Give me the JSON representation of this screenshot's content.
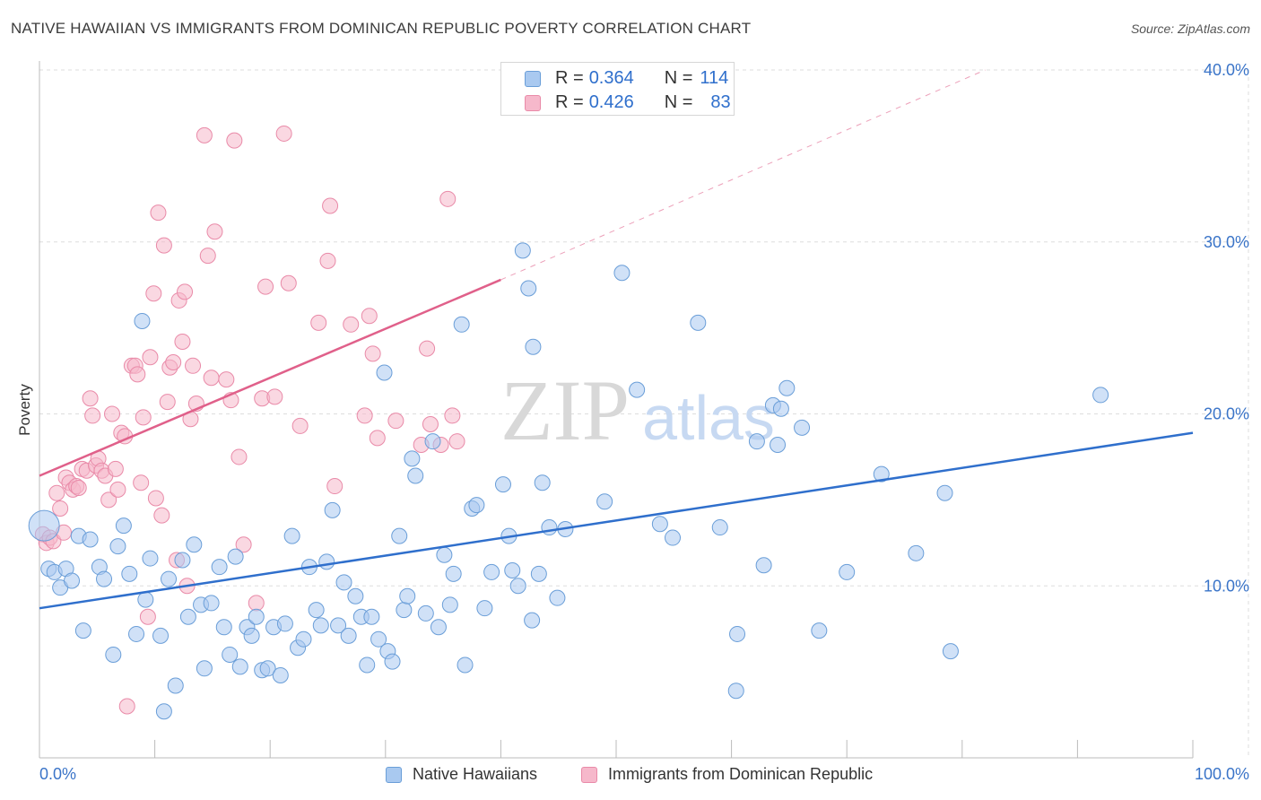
{
  "title": "NATIVE HAWAIIAN VS IMMIGRANTS FROM DOMINICAN REPUBLIC POVERTY CORRELATION CHART",
  "source": "Source: ZipAtlas.com",
  "watermark": {
    "zip": "ZIP",
    "atlas": "atlas"
  },
  "colors": {
    "blue_fill": "#a9c9f0",
    "blue_stroke": "#6a9ed8",
    "blue_line": "#2f6fcc",
    "pink_fill": "#f6b8cb",
    "pink_stroke": "#e98aa8",
    "pink_line": "#e0608a",
    "axis_text": "#3a74c8",
    "grid": "#dddddd"
  },
  "stats": {
    "r_label": "R =",
    "n_label": "N =",
    "blue": {
      "r": "0.364",
      "n": "114"
    },
    "pink": {
      "r": "0.426",
      "n": "83"
    }
  },
  "chart_data": {
    "type": "scatter",
    "title": "NATIVE HAWAIIAN VS IMMIGRANTS FROM DOMINICAN REPUBLIC POVERTY CORRELATION CHART",
    "xlabel": "",
    "ylabel": "Poverty",
    "xlim": [
      0,
      100
    ],
    "ylim": [
      0,
      40
    ],
    "x_tick_labels": [
      "0.0%",
      "100.0%"
    ],
    "y_ticks": [
      10,
      20,
      30,
      40
    ],
    "y_tick_labels": [
      "10.0%",
      "20.0%",
      "30.0%",
      "40.0%"
    ],
    "grid": true,
    "legend_position": "bottom",
    "series": [
      {
        "name": "Native Hawaiians",
        "color": "#a9c9f0",
        "trend": {
          "x": [
            0,
            100
          ],
          "y": [
            8.7,
            18.9
          ],
          "dashed_extension": false
        },
        "points": [
          [
            0.4,
            13.5
          ],
          [
            0.8,
            11
          ],
          [
            1.3,
            10.8
          ],
          [
            1.8,
            9.9
          ],
          [
            2.3,
            11
          ],
          [
            2.8,
            10.3
          ],
          [
            3.4,
            12.9
          ],
          [
            3.8,
            7.4
          ],
          [
            4.4,
            12.7
          ],
          [
            5.2,
            11.1
          ],
          [
            5.6,
            10.4
          ],
          [
            6.4,
            6
          ],
          [
            6.8,
            12.3
          ],
          [
            7.3,
            13.5
          ],
          [
            7.8,
            10.7
          ],
          [
            8.4,
            7.2
          ],
          [
            8.9,
            25.4
          ],
          [
            9.2,
            9.2
          ],
          [
            9.6,
            11.6
          ],
          [
            10.5,
            7.1
          ],
          [
            10.8,
            2.7
          ],
          [
            11.2,
            10.4
          ],
          [
            11.8,
            4.2
          ],
          [
            12.4,
            11.5
          ],
          [
            12.9,
            8.2
          ],
          [
            13.4,
            12.4
          ],
          [
            14.0,
            8.9
          ],
          [
            14.3,
            5.2
          ],
          [
            14.9,
            9
          ],
          [
            15.6,
            11.1
          ],
          [
            16.0,
            7.6
          ],
          [
            16.5,
            6
          ],
          [
            17.0,
            11.7
          ],
          [
            17.4,
            5.3
          ],
          [
            18.0,
            7.6
          ],
          [
            18.4,
            7.1
          ],
          [
            18.8,
            8.2
          ],
          [
            19.3,
            5.1
          ],
          [
            19.8,
            5.2
          ],
          [
            20.3,
            7.6
          ],
          [
            20.9,
            4.8
          ],
          [
            21.3,
            7.8
          ],
          [
            21.9,
            12.9
          ],
          [
            22.4,
            6.4
          ],
          [
            22.9,
            6.9
          ],
          [
            23.4,
            11.1
          ],
          [
            24.0,
            8.6
          ],
          [
            24.4,
            7.7
          ],
          [
            24.9,
            11.4
          ],
          [
            25.4,
            14.4
          ],
          [
            25.9,
            7.7
          ],
          [
            26.4,
            10.2
          ],
          [
            26.8,
            7.1
          ],
          [
            27.4,
            9.4
          ],
          [
            27.9,
            8.2
          ],
          [
            28.4,
            5.4
          ],
          [
            28.8,
            8.2
          ],
          [
            29.4,
            6.9
          ],
          [
            29.9,
            22.4
          ],
          [
            30.2,
            6.2
          ],
          [
            30.6,
            5.6
          ],
          [
            31.2,
            12.9
          ],
          [
            31.6,
            8.6
          ],
          [
            31.9,
            9.4
          ],
          [
            32.3,
            17.4
          ],
          [
            32.6,
            16.4
          ],
          [
            33.5,
            8.4
          ],
          [
            34.1,
            18.4
          ],
          [
            34.6,
            7.6
          ],
          [
            35.1,
            11.8
          ],
          [
            35.6,
            8.9
          ],
          [
            35.9,
            10.7
          ],
          [
            36.6,
            25.2
          ],
          [
            36.9,
            5.4
          ],
          [
            37.5,
            14.5
          ],
          [
            37.9,
            14.7
          ],
          [
            38.6,
            8.7
          ],
          [
            39.2,
            10.8
          ],
          [
            40.2,
            15.9
          ],
          [
            40.7,
            12.9
          ],
          [
            41.0,
            10.9
          ],
          [
            41.5,
            10
          ],
          [
            41.9,
            29.5
          ],
          [
            42.4,
            27.3
          ],
          [
            42.7,
            8
          ],
          [
            42.8,
            23.9
          ],
          [
            43.3,
            10.7
          ],
          [
            43.6,
            16
          ],
          [
            44.2,
            13.4
          ],
          [
            44.9,
            9.3
          ],
          [
            45.6,
            13.3
          ],
          [
            49.0,
            14.9
          ],
          [
            50.5,
            28.2
          ],
          [
            51.8,
            21.4
          ],
          [
            53.8,
            13.6
          ],
          [
            54.9,
            12.8
          ],
          [
            57.1,
            25.3
          ],
          [
            59.0,
            13.4
          ],
          [
            60.5,
            7.2
          ],
          [
            60.4,
            3.9
          ],
          [
            62.2,
            18.4
          ],
          [
            62.8,
            11.2
          ],
          [
            63.6,
            20.5
          ],
          [
            64.0,
            18.2
          ],
          [
            64.3,
            20.3
          ],
          [
            64.8,
            21.5
          ],
          [
            66.1,
            19.2
          ],
          [
            67.6,
            7.4
          ],
          [
            70.0,
            10.8
          ],
          [
            73.0,
            16.5
          ],
          [
            76.0,
            11.9
          ],
          [
            78.5,
            15.4
          ],
          [
            79.0,
            6.2
          ],
          [
            92.0,
            21.1
          ]
        ]
      },
      {
        "name": "Immigrants from Dominican Republic",
        "color": "#f6b8cb",
        "trend": {
          "x": [
            0,
            40
          ],
          "y": [
            16.4,
            27.8
          ],
          "dashed_extension": true,
          "dashed_to": [
            82,
            40
          ]
        },
        "points": [
          [
            0.3,
            13
          ],
          [
            0.6,
            12.5
          ],
          [
            0.9,
            12.8
          ],
          [
            1.2,
            12.6
          ],
          [
            1.5,
            15.4
          ],
          [
            1.8,
            14.5
          ],
          [
            2.1,
            13.1
          ],
          [
            2.3,
            16.3
          ],
          [
            2.6,
            16
          ],
          [
            2.9,
            15.6
          ],
          [
            3.2,
            15.8
          ],
          [
            3.4,
            15.7
          ],
          [
            3.7,
            16.8
          ],
          [
            4.1,
            16.7
          ],
          [
            4.4,
            20.9
          ],
          [
            4.6,
            19.9
          ],
          [
            4.9,
            17
          ],
          [
            5.1,
            17.4
          ],
          [
            5.4,
            16.7
          ],
          [
            5.7,
            16.4
          ],
          [
            6.0,
            15
          ],
          [
            6.3,
            20
          ],
          [
            6.6,
            16.8
          ],
          [
            6.8,
            15.6
          ],
          [
            7.1,
            18.9
          ],
          [
            7.4,
            18.7
          ],
          [
            7.6,
            3
          ],
          [
            8.0,
            22.8
          ],
          [
            8.3,
            22.8
          ],
          [
            8.5,
            22.3
          ],
          [
            8.8,
            16
          ],
          [
            9.0,
            19.8
          ],
          [
            9.4,
            8.2
          ],
          [
            9.6,
            23.3
          ],
          [
            9.9,
            27
          ],
          [
            10.1,
            15.1
          ],
          [
            10.3,
            31.7
          ],
          [
            10.6,
            14.1
          ],
          [
            10.8,
            29.8
          ],
          [
            11.1,
            20.7
          ],
          [
            11.3,
            22.7
          ],
          [
            11.6,
            23
          ],
          [
            11.9,
            11.5
          ],
          [
            12.1,
            26.6
          ],
          [
            12.4,
            24.2
          ],
          [
            12.6,
            27.1
          ],
          [
            12.8,
            10
          ],
          [
            13.1,
            19.7
          ],
          [
            13.3,
            22.8
          ],
          [
            13.6,
            20.6
          ],
          [
            14.3,
            36.2
          ],
          [
            14.6,
            29.2
          ],
          [
            14.9,
            22.1
          ],
          [
            15.2,
            30.6
          ],
          [
            16.2,
            22
          ],
          [
            16.6,
            20.8
          ],
          [
            16.9,
            35.9
          ],
          [
            17.3,
            17.5
          ],
          [
            17.7,
            12.4
          ],
          [
            18.8,
            9
          ],
          [
            19.3,
            20.9
          ],
          [
            19.6,
            27.4
          ],
          [
            20.4,
            21
          ],
          [
            21.2,
            36.3
          ],
          [
            21.6,
            27.6
          ],
          [
            22.6,
            19.3
          ],
          [
            24.2,
            25.3
          ],
          [
            25.0,
            28.9
          ],
          [
            25.2,
            32.1
          ],
          [
            25.6,
            15.8
          ],
          [
            27.0,
            25.2
          ],
          [
            28.2,
            19.9
          ],
          [
            28.6,
            25.7
          ],
          [
            28.9,
            23.5
          ],
          [
            29.3,
            18.6
          ],
          [
            30.9,
            19.6
          ],
          [
            33.1,
            18.2
          ],
          [
            33.6,
            23.8
          ],
          [
            33.9,
            19.4
          ],
          [
            34.8,
            18.2
          ],
          [
            35.8,
            19.9
          ],
          [
            35.4,
            32.5
          ],
          [
            36.2,
            18.4
          ]
        ]
      }
    ]
  },
  "legend": {
    "blue_label": "Native Hawaiians",
    "pink_label": "Immigrants from Dominican Republic"
  }
}
